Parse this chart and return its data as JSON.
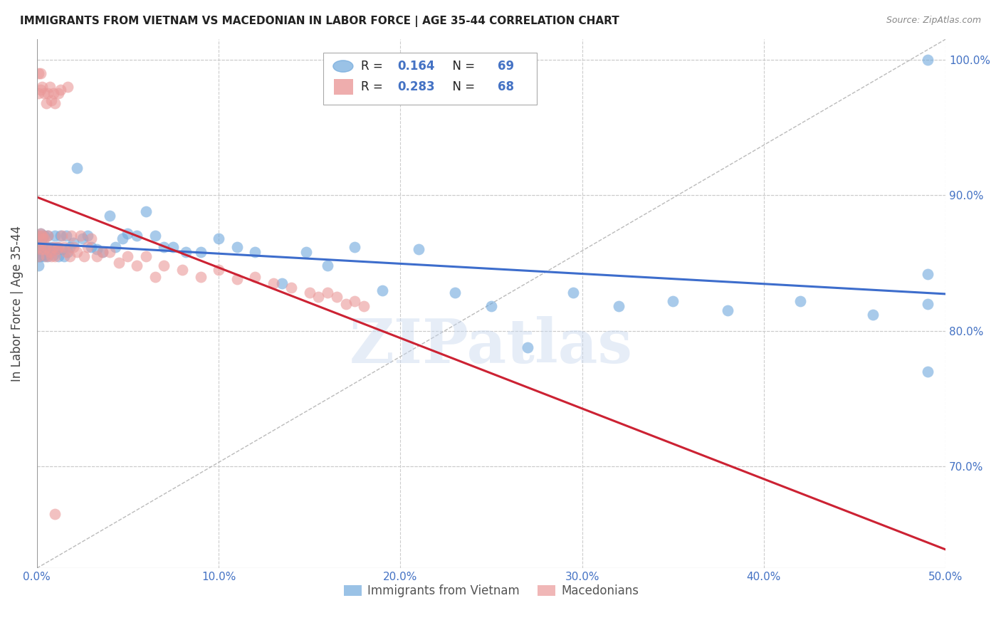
{
  "title": "IMMIGRANTS FROM VIETNAM VS MACEDONIAN IN LABOR FORCE | AGE 35-44 CORRELATION CHART",
  "source": "Source: ZipAtlas.com",
  "ylabel_label": "In Labor Force | Age 35-44",
  "legend_labels": [
    "Immigrants from Vietnam",
    "Macedonians"
  ],
  "r_vietnam": 0.164,
  "n_vietnam": 69,
  "r_macedonian": 0.283,
  "n_macedonian": 68,
  "blue_color": "#6fa8dc",
  "pink_color": "#ea9999",
  "blue_line_color": "#3d6dcc",
  "pink_line_color": "#cc2233",
  "axis_text_color": "#4472c4",
  "watermark": "ZIPatlas",
  "xmin": 0.0,
  "xmax": 0.5,
  "ymin": 0.625,
  "ymax": 1.015,
  "xtick_vals": [
    0.0,
    0.1,
    0.2,
    0.3,
    0.4,
    0.5
  ],
  "ytick_vals": [
    0.7,
    0.8,
    0.9,
    1.0
  ],
  "vietnam_x": [
    0.001,
    0.001,
    0.001,
    0.001,
    0.002,
    0.002,
    0.002,
    0.003,
    0.003,
    0.003,
    0.004,
    0.004,
    0.005,
    0.005,
    0.006,
    0.006,
    0.007,
    0.008,
    0.009,
    0.01,
    0.01,
    0.011,
    0.012,
    0.013,
    0.014,
    0.015,
    0.016,
    0.017,
    0.018,
    0.02,
    0.022,
    0.025,
    0.028,
    0.03,
    0.033,
    0.036,
    0.04,
    0.043,
    0.047,
    0.05,
    0.055,
    0.06,
    0.065,
    0.07,
    0.075,
    0.082,
    0.09,
    0.1,
    0.11,
    0.12,
    0.135,
    0.148,
    0.16,
    0.175,
    0.19,
    0.21,
    0.23,
    0.25,
    0.27,
    0.295,
    0.32,
    0.35,
    0.38,
    0.42,
    0.46,
    0.49,
    0.49,
    0.49,
    0.49
  ],
  "vietnam_y": [
    0.87,
    0.862,
    0.855,
    0.848,
    0.872,
    0.86,
    0.855,
    0.868,
    0.856,
    0.862,
    0.87,
    0.855,
    0.862,
    0.856,
    0.87,
    0.855,
    0.858,
    0.862,
    0.856,
    0.86,
    0.87,
    0.862,
    0.855,
    0.87,
    0.86,
    0.855,
    0.87,
    0.858,
    0.862,
    0.865,
    0.92,
    0.868,
    0.87,
    0.862,
    0.86,
    0.858,
    0.885,
    0.862,
    0.868,
    0.872,
    0.87,
    0.888,
    0.87,
    0.862,
    0.862,
    0.858,
    0.858,
    0.868,
    0.862,
    0.858,
    0.835,
    0.858,
    0.848,
    0.862,
    0.83,
    0.86,
    0.828,
    0.818,
    0.788,
    0.828,
    0.818,
    0.822,
    0.815,
    0.822,
    0.812,
    0.842,
    0.82,
    0.77,
    1.0
  ],
  "macedonian_x": [
    0.001,
    0.001,
    0.001,
    0.001,
    0.001,
    0.002,
    0.002,
    0.002,
    0.002,
    0.003,
    0.003,
    0.003,
    0.004,
    0.004,
    0.004,
    0.005,
    0.005,
    0.005,
    0.006,
    0.006,
    0.007,
    0.007,
    0.008,
    0.008,
    0.009,
    0.009,
    0.01,
    0.01,
    0.011,
    0.012,
    0.012,
    0.013,
    0.014,
    0.015,
    0.016,
    0.017,
    0.018,
    0.019,
    0.02,
    0.022,
    0.024,
    0.026,
    0.028,
    0.03,
    0.033,
    0.036,
    0.04,
    0.045,
    0.05,
    0.055,
    0.06,
    0.065,
    0.07,
    0.08,
    0.09,
    0.1,
    0.11,
    0.12,
    0.13,
    0.14,
    0.15,
    0.155,
    0.16,
    0.165,
    0.17,
    0.175,
    0.18,
    0.01
  ],
  "macedonian_y": [
    0.87,
    0.862,
    0.855,
    0.975,
    0.99,
    0.872,
    0.86,
    0.99,
    0.978,
    0.868,
    0.98,
    0.87,
    0.868,
    0.975,
    0.86,
    0.862,
    0.855,
    0.968,
    0.87,
    0.975,
    0.858,
    0.98,
    0.855,
    0.97,
    0.862,
    0.975,
    0.855,
    0.968,
    0.86,
    0.975,
    0.862,
    0.978,
    0.87,
    0.862,
    0.858,
    0.98,
    0.855,
    0.87,
    0.862,
    0.858,
    0.87,
    0.855,
    0.862,
    0.868,
    0.855,
    0.858,
    0.858,
    0.85,
    0.855,
    0.848,
    0.855,
    0.84,
    0.848,
    0.845,
    0.84,
    0.845,
    0.838,
    0.84,
    0.835,
    0.832,
    0.828,
    0.825,
    0.828,
    0.825,
    0.82,
    0.822,
    0.818,
    0.665
  ]
}
